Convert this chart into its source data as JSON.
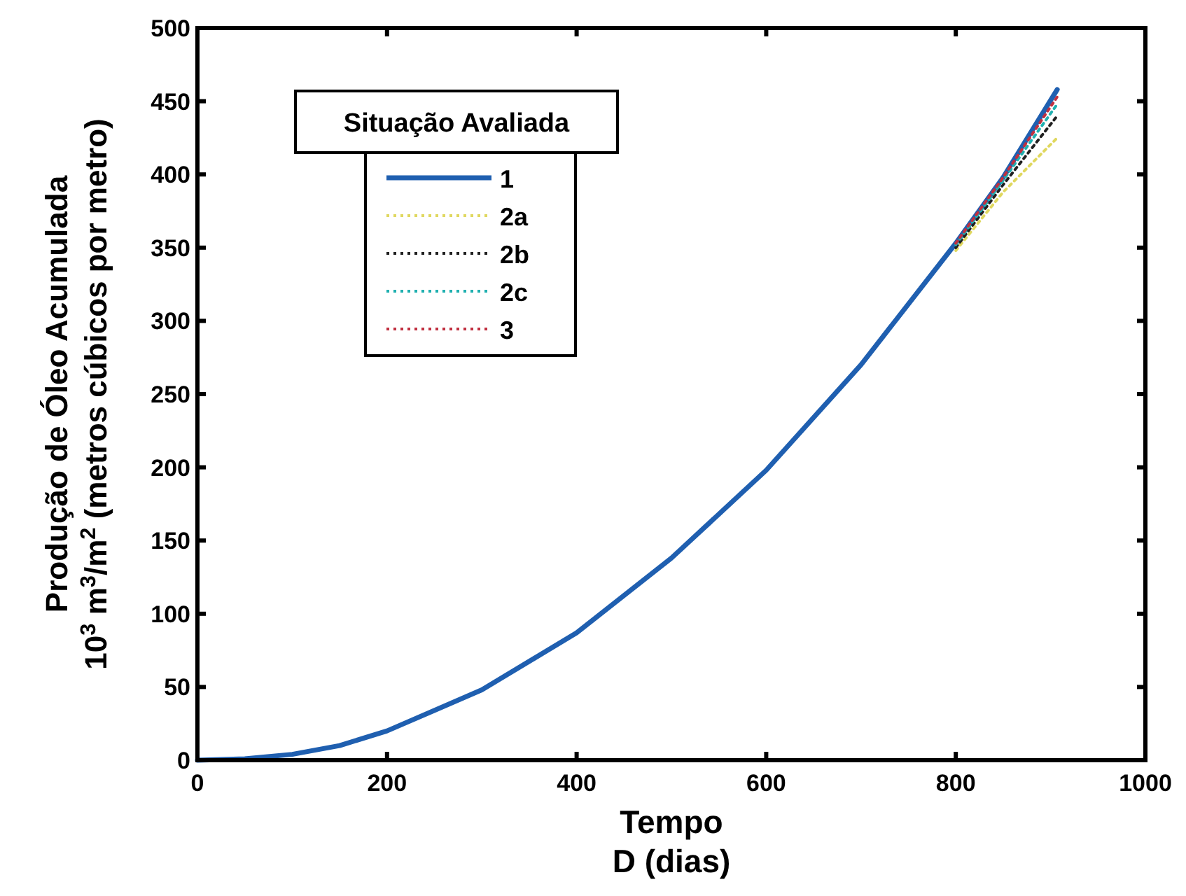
{
  "chart_data": {
    "type": "line",
    "xlabel": "Tempo\nD (dias)",
    "ylabel": "Produção de Óleo Acumulada\n10$^{3}$ m$^{3}$/m$^{2}$ (metros cúbicos por metro)",
    "legend_title": "Situação Avaliada",
    "legend": "top left",
    "xlim": [
      0,
      1000
    ],
    "xticks": [
      0,
      200,
      400,
      600,
      800,
      1000
    ],
    "ylim": [
      0,
      500
    ],
    "yticks": [
      0,
      50,
      100,
      150,
      200,
      250,
      300,
      350,
      400,
      450,
      500
    ],
    "grid": false,
    "marker": "none",
    "series": [
      {
        "name": "1",
        "color": "#1f5fb0",
        "line_style": "solid",
        "x": [
          0,
          50,
          100,
          150,
          200,
          300,
          400,
          500,
          600,
          700,
          800,
          850,
          907
        ],
        "values": [
          0,
          1,
          4,
          10,
          20,
          48,
          87,
          138,
          198,
          270,
          353,
          398,
          458
        ]
      },
      {
        "name": "2a",
        "color": "#e0d860",
        "line_style": "dotted",
        "x": [
          800,
          850,
          907
        ],
        "values": [
          348,
          388,
          425
        ]
      },
      {
        "name": "2b",
        "color": "#202020",
        "line_style": "dotted",
        "x": [
          800,
          850,
          907
        ],
        "values": [
          350,
          393,
          440
        ]
      },
      {
        "name": "2c",
        "color": "#20b0b0",
        "line_style": "dotted",
        "x": [
          800,
          850,
          907
        ],
        "values": [
          352,
          396,
          448
        ]
      },
      {
        "name": "3",
        "color": "#c03040",
        "line_style": "dotted",
        "x": [
          800,
          850,
          907
        ],
        "values": [
          353,
          398,
          453
        ]
      }
    ]
  }
}
